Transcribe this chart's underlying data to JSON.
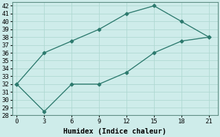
{
  "line1_x": [
    0,
    3,
    6,
    9,
    12,
    15,
    18,
    21
  ],
  "line1_y": [
    32,
    36,
    37.5,
    39,
    41,
    42,
    40,
    38
  ],
  "line2_x": [
    0,
    3,
    6,
    9,
    12,
    15,
    18,
    21
  ],
  "line2_y": [
    32,
    28.5,
    32,
    32,
    33.5,
    36,
    37.5,
    38
  ],
  "line_color": "#2d7a6e",
  "bg_color": "#ceecea",
  "grid_color": "#aed8d2",
  "xlabel": "Humidex (Indice chaleur)",
  "xlim": [
    -0.5,
    22
  ],
  "ylim": [
    28,
    42.5
  ],
  "xticks": [
    0,
    3,
    6,
    9,
    12,
    15,
    18,
    21
  ],
  "yticks": [
    28,
    29,
    30,
    31,
    32,
    33,
    34,
    35,
    36,
    37,
    38,
    39,
    40,
    41,
    42
  ],
  "marker": "D",
  "marker_size": 2.5,
  "line_width": 1.0,
  "xlabel_fontsize": 7.5,
  "tick_fontsize": 6.5
}
